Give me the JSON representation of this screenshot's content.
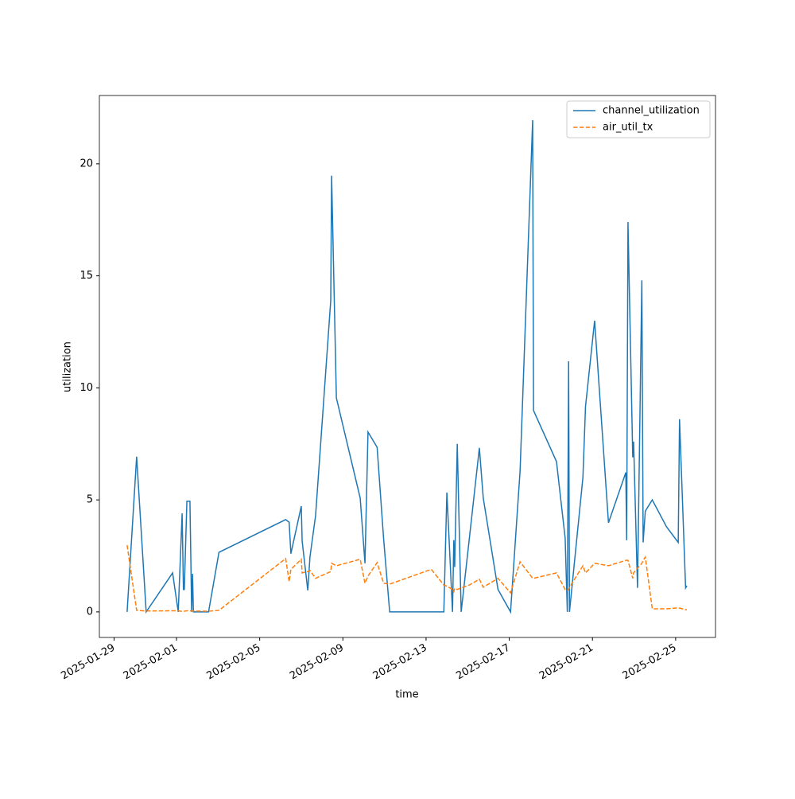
{
  "chart_data": {
    "type": "line",
    "x_label": "time",
    "y_label": "utilization",
    "x": [
      "2025-01-29T15:00",
      "2025-01-30T02:00",
      "2025-01-30T13:00",
      "2025-01-31T19:30",
      "2025-02-01T02:00",
      "2025-02-01T06:30",
      "2025-02-01T08:00",
      "2025-02-01T09:00",
      "2025-02-01T12:00",
      "2025-02-01T15:30",
      "2025-02-01T17:30",
      "2025-02-01T18:30",
      "2025-02-01T19:30",
      "2025-02-02T13:00",
      "2025-02-03T01:00",
      "2025-02-06T06:00",
      "2025-02-06T10:00",
      "2025-02-06T12:00",
      "2025-02-07T00:00",
      "2025-02-07T01:00",
      "2025-02-07T07:30",
      "2025-02-07T10:00",
      "2025-02-07T16:30",
      "2025-02-08T10:00",
      "2025-02-08T11:00",
      "2025-02-08T16:30",
      "2025-02-09T20:00",
      "2025-02-10T01:30",
      "2025-02-10T05:00",
      "2025-02-10T15:30",
      "2025-02-10T23:00",
      "2025-02-11T06:00",
      "2025-02-13T06:00",
      "2025-02-13T20:30",
      "2025-02-14T00:00",
      "2025-02-14T06:30",
      "2025-02-14T08:00",
      "2025-02-14T09:00",
      "2025-02-14T12:00",
      "2025-02-14T16:30",
      "2025-02-15T02:00",
      "2025-02-15T13:30",
      "2025-02-15T18:00",
      "2025-02-16T11:00",
      "2025-02-17T01:30",
      "2025-02-17T12:30",
      "2025-02-18T03:00",
      "2025-02-18T04:00",
      "2025-02-19T06:30",
      "2025-02-19T16:30",
      "2025-02-19T19:00",
      "2025-02-19T20:30",
      "2025-02-19T21:30",
      "2025-02-20T13:00",
      "2025-02-20T16:00",
      "2025-02-21T02:30",
      "2025-02-21T18:30",
      "2025-02-22T14:30",
      "2025-02-22T15:30",
      "2025-02-22T17:00",
      "2025-02-22T22:30",
      "2025-02-22T23:30",
      "2025-02-23T04:00",
      "2025-02-23T09:00",
      "2025-02-23T10:30",
      "2025-02-23T13:00",
      "2025-02-23T21:00",
      "2025-02-24T13:30",
      "2025-02-25T03:00",
      "2025-02-25T04:30",
      "2025-02-25T11:30",
      "2025-02-25T13:00"
    ],
    "series": [
      {
        "name": "channel_utilization",
        "color": "#1f77b4",
        "dash": false,
        "values": [
          0,
          6.93,
          0,
          1.74,
          0,
          4.4,
          1.0,
          1.0,
          4.94,
          4.94,
          0,
          1.7,
          0,
          0,
          2.66,
          4.12,
          4.0,
          2.6,
          4.72,
          3.16,
          0.96,
          2.45,
          4.3,
          13.9,
          19.47,
          9.55,
          5.08,
          2.17,
          8.03,
          7.35,
          3.27,
          0,
          0,
          0,
          5.33,
          0,
          3.2,
          2.0,
          7.5,
          0,
          3.3,
          7.32,
          5.08,
          1.0,
          0,
          6.3,
          21.95,
          8.99,
          6.71,
          3.3,
          0,
          11.19,
          0,
          6.0,
          9.17,
          13.0,
          3.98,
          6.22,
          3.2,
          17.4,
          6.9,
          7.6,
          1.07,
          14.8,
          3.1,
          4.5,
          5.0,
          3.8,
          3.1,
          8.6,
          1.07,
          1.17
        ]
      },
      {
        "name": "air_util_tx",
        "color": "#ff7f0e",
        "dash": true,
        "values": [
          2.98,
          0.07,
          0.04,
          0.05,
          0.05,
          0.02,
          0.03,
          0.03,
          0.05,
          0.05,
          0.04,
          0.04,
          0.04,
          0.03,
          0.07,
          2.38,
          1.35,
          1.9,
          2.35,
          1.74,
          1.8,
          1.85,
          1.5,
          1.8,
          2.17,
          2.06,
          2.35,
          1.28,
          1.6,
          2.2,
          1.28,
          1.24,
          1.9,
          1.2,
          1.15,
          1.0,
          0.9,
          1.05,
          1.0,
          1.07,
          1.2,
          1.46,
          1.1,
          1.5,
          0.85,
          2.24,
          1.5,
          1.5,
          1.74,
          1.0,
          0.96,
          1.0,
          1.1,
          2.06,
          1.74,
          2.17,
          2.06,
          2.3,
          2.3,
          2.3,
          1.5,
          1.74,
          1.95,
          2.17,
          2.3,
          2.45,
          0.14,
          0.14,
          0.18,
          0.17,
          0.1,
          0.1
        ]
      }
    ],
    "xlim": [
      "2025-01-28T07:00",
      "2025-02-26T22:00"
    ],
    "xticks": [
      "2025-01-29",
      "2025-02-01",
      "2025-02-05",
      "2025-02-09",
      "2025-02-13",
      "2025-02-17",
      "2025-02-21",
      "2025-02-25"
    ],
    "ylim": [
      -1.14,
      23.05
    ],
    "yticks": [
      0,
      5,
      10,
      15,
      20
    ],
    "legend": "upper right",
    "grid": false
  }
}
